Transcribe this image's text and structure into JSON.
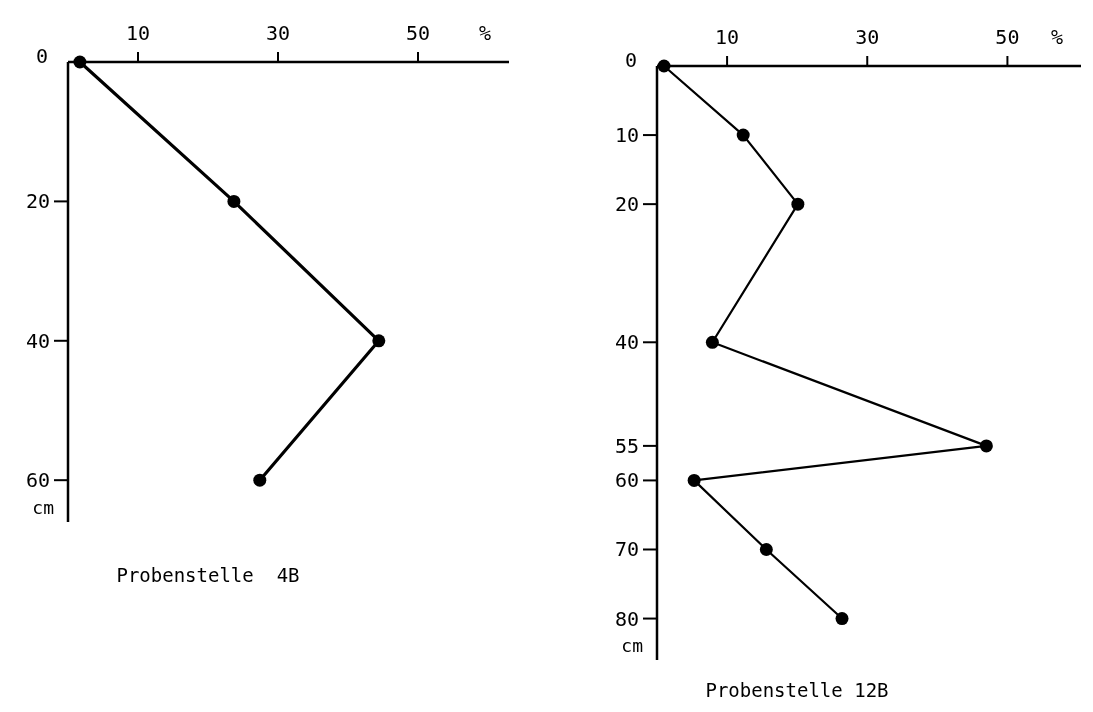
{
  "chart_data": [
    {
      "type": "line",
      "title": "Probenstelle  4B",
      "xlabel": "%",
      "ylabel": "cm",
      "marker": "circle",
      "line_style": "solid",
      "xlim": [
        0,
        63
      ],
      "xticks": [
        10,
        30,
        50
      ],
      "ylim": [
        66,
        0
      ],
      "yticks": [
        0,
        20,
        40,
        60
      ],
      "series": [
        {
          "color": "#000000",
          "x": [
            1.7,
            23.7,
            44.4,
            27.4
          ],
          "values": [
            0,
            20,
            40,
            60
          ]
        }
      ]
    },
    {
      "type": "line",
      "title": "Probenstelle 12B",
      "xlabel": "%",
      "ylabel": "cm",
      "marker": "circle",
      "line_style": "solid",
      "xlim": [
        0,
        60.5
      ],
      "xticks": [
        10,
        30,
        50
      ],
      "ylim": [
        86,
        0
      ],
      "yticks": [
        0,
        10,
        20,
        40,
        55,
        60,
        70,
        80
      ],
      "series": [
        {
          "color": "#000000",
          "x": [
            1,
            12.3,
            20.1,
            7.9,
            47,
            5.3,
            15.6,
            26.4
          ],
          "values": [
            0,
            10,
            20,
            40,
            55,
            60,
            70,
            80
          ]
        }
      ]
    }
  ]
}
